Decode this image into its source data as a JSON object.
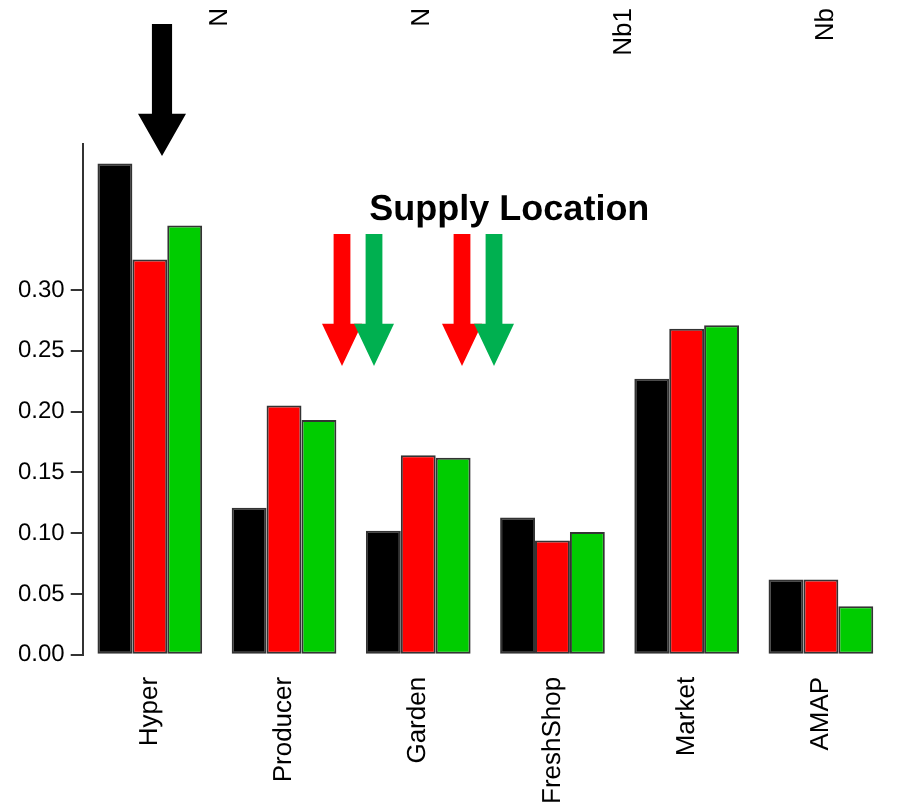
{
  "chart_data": {
    "type": "bar",
    "title": "Supply Location",
    "categories": [
      "Hyper",
      "Producer",
      "Garden",
      "FreshShop",
      "Market",
      "AMAP"
    ],
    "series": [
      {
        "color": "#000000",
        "values": [
          0.404,
          0.121,
          0.102,
          0.113,
          0.227,
          0.062
        ]
      },
      {
        "color": "#ff0000",
        "values": [
          0.325,
          0.205,
          0.164,
          0.094,
          0.268,
          0.062
        ]
      },
      {
        "color": "#00cc00",
        "values": [
          0.353,
          0.193,
          0.162,
          0.101,
          0.271,
          0.04
        ]
      }
    ],
    "ylim": [
      0,
      0.42
    ],
    "yticks": [
      {
        "value": 0,
        "label": "0.00"
      },
      {
        "value": 0.05,
        "label": "0.05"
      },
      {
        "value": 0.1,
        "label": "0.10"
      },
      {
        "value": 0.15,
        "label": "0.15"
      },
      {
        "value": 0.2,
        "label": "0.20"
      },
      {
        "value": 0.25,
        "label": "0.25"
      },
      {
        "value": 0.3,
        "label": "0.30"
      }
    ],
    "annotations": [
      "N",
      "N",
      "Nb1",
      "Nb"
    ],
    "grid": false,
    "legend": false
  }
}
